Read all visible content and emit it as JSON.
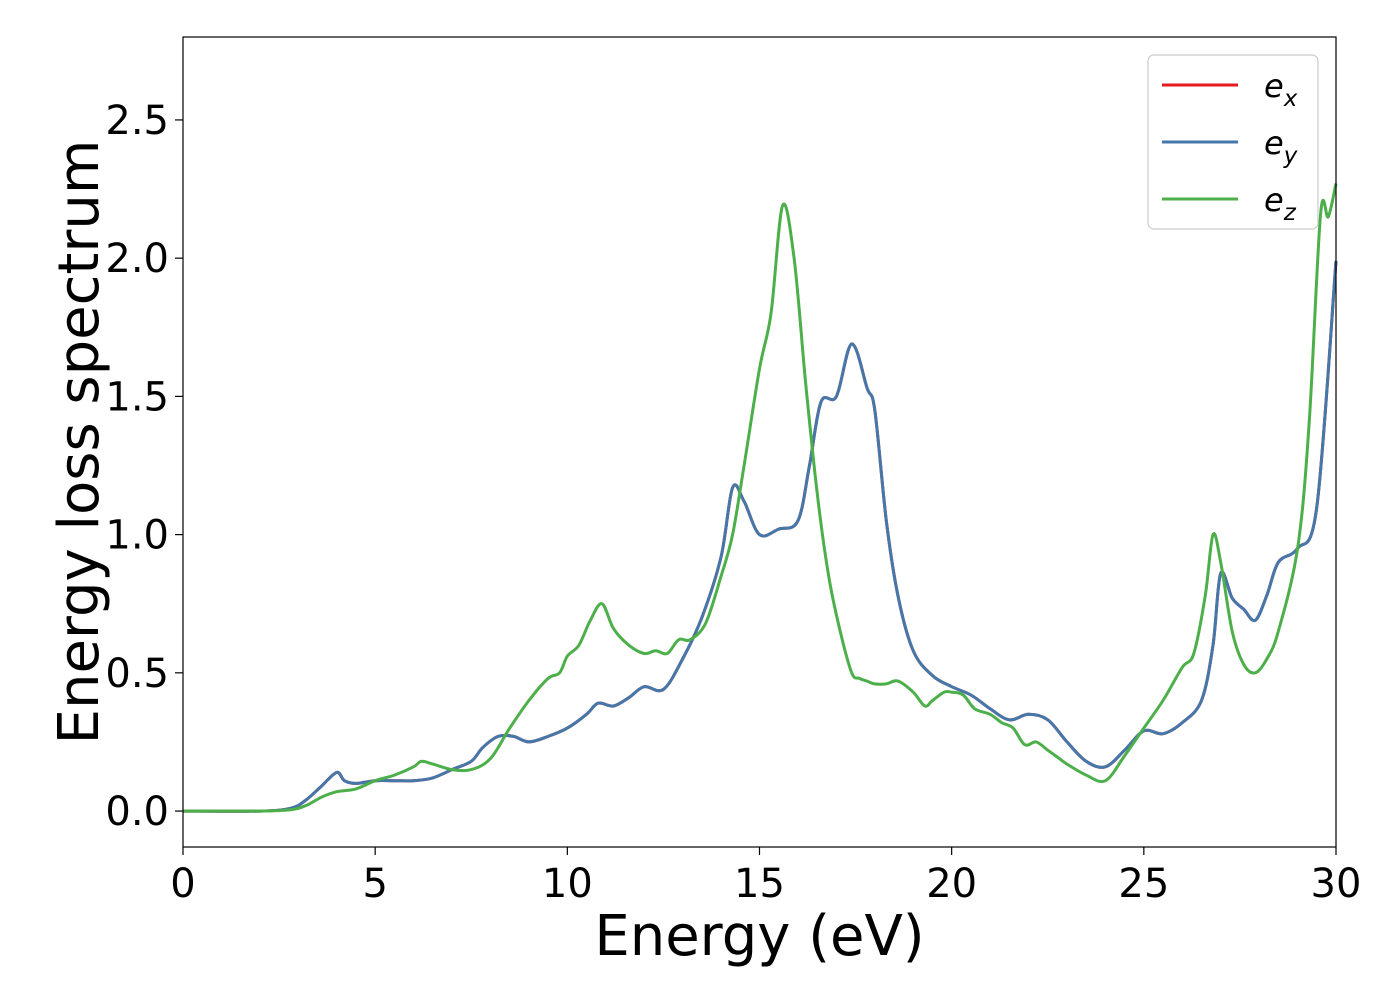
{
  "chart_data": {
    "type": "line",
    "xlabel": "Energy (eV)",
    "ylabel": "Energy loss spectrum",
    "xlim": [
      0,
      30
    ],
    "ylim": [
      -0.13,
      2.8
    ],
    "xticks": [
      "0",
      "5",
      "10",
      "15",
      "20",
      "25",
      "30"
    ],
    "yticks": [
      "0.0",
      "0.5",
      "1.0",
      "1.5",
      "2.0",
      "2.5"
    ],
    "grid": false,
    "legend_position": "top-right",
    "series": [
      {
        "name": "e_x",
        "legend_main": "e",
        "legend_sub": "x",
        "color": "#e41a1c",
        "x": [
          0,
          2,
          2.8,
          3.2,
          3.6,
          4.0,
          4.2,
          4.5,
          5,
          5.5,
          6,
          6.5,
          7,
          7.5,
          7.8,
          8.2,
          8.6,
          9,
          9.5,
          10,
          10.5,
          10.8,
          11.2,
          11.6,
          12,
          12.5,
          13,
          13.5,
          14,
          14.3,
          14.6,
          15,
          15.5,
          16,
          16.3,
          16.6,
          17,
          17.4,
          17.8,
          18,
          18.3,
          18.6,
          19,
          19.5,
          20,
          20.5,
          21,
          21.5,
          22,
          22.5,
          23,
          23.5,
          24,
          24.5,
          25,
          25.5,
          26,
          26.5,
          26.8,
          27,
          27.3,
          27.6,
          27.9,
          28.2,
          28.5,
          29,
          29.5,
          30
        ],
        "values": [
          0,
          0,
          0.01,
          0.04,
          0.09,
          0.14,
          0.11,
          0.1,
          0.11,
          0.11,
          0.11,
          0.12,
          0.15,
          0.18,
          0.23,
          0.27,
          0.27,
          0.25,
          0.27,
          0.3,
          0.35,
          0.39,
          0.38,
          0.41,
          0.45,
          0.44,
          0.55,
          0.7,
          0.92,
          1.17,
          1.12,
          1.0,
          1.02,
          1.05,
          1.25,
          1.48,
          1.5,
          1.69,
          1.53,
          1.45,
          1.05,
          0.78,
          0.58,
          0.49,
          0.45,
          0.42,
          0.37,
          0.33,
          0.35,
          0.33,
          0.25,
          0.18,
          0.16,
          0.22,
          0.29,
          0.28,
          0.32,
          0.4,
          0.6,
          0.86,
          0.77,
          0.73,
          0.69,
          0.78,
          0.9,
          0.95,
          1.1,
          1.99
        ]
      },
      {
        "name": "e_y",
        "legend_main": "e",
        "legend_sub": "y",
        "color": "#4477aa",
        "x": [
          0,
          2,
          2.8,
          3.2,
          3.6,
          4.0,
          4.2,
          4.5,
          5,
          5.5,
          6,
          6.5,
          7,
          7.5,
          7.8,
          8.2,
          8.6,
          9,
          9.5,
          10,
          10.5,
          10.8,
          11.2,
          11.6,
          12,
          12.5,
          13,
          13.5,
          14,
          14.3,
          14.6,
          15,
          15.5,
          16,
          16.3,
          16.6,
          17,
          17.4,
          17.8,
          18,
          18.3,
          18.6,
          19,
          19.5,
          20,
          20.5,
          21,
          21.5,
          22,
          22.5,
          23,
          23.5,
          24,
          24.5,
          25,
          25.5,
          26,
          26.5,
          26.8,
          27,
          27.3,
          27.6,
          27.9,
          28.2,
          28.5,
          29,
          29.5,
          30
        ],
        "values": [
          0,
          0,
          0.01,
          0.04,
          0.09,
          0.14,
          0.11,
          0.1,
          0.11,
          0.11,
          0.11,
          0.12,
          0.15,
          0.18,
          0.23,
          0.27,
          0.27,
          0.25,
          0.27,
          0.3,
          0.35,
          0.39,
          0.38,
          0.41,
          0.45,
          0.44,
          0.55,
          0.7,
          0.92,
          1.17,
          1.12,
          1.0,
          1.02,
          1.05,
          1.25,
          1.48,
          1.5,
          1.69,
          1.53,
          1.45,
          1.05,
          0.78,
          0.58,
          0.49,
          0.45,
          0.42,
          0.37,
          0.33,
          0.35,
          0.33,
          0.25,
          0.18,
          0.16,
          0.22,
          0.29,
          0.28,
          0.32,
          0.4,
          0.6,
          0.86,
          0.77,
          0.73,
          0.69,
          0.78,
          0.9,
          0.95,
          1.1,
          1.99
        ]
      },
      {
        "name": "e_z",
        "legend_main": "e",
        "legend_sub": "z",
        "color": "#4daf4a",
        "x": [
          0,
          2,
          2.8,
          3.2,
          3.6,
          4.0,
          4.5,
          5,
          5.5,
          6,
          6.2,
          6.5,
          7,
          7.5,
          8,
          8.5,
          9,
          9.5,
          9.8,
          10,
          10.3,
          10.6,
          10.9,
          11.2,
          11.6,
          12,
          12.3,
          12.6,
          12.9,
          13.2,
          13.6,
          14,
          14.3,
          14.6,
          15,
          15.3,
          15.6,
          15.9,
          16.2,
          16.5,
          16.8,
          17.1,
          17.4,
          17.6,
          17.8,
          18,
          18.3,
          18.6,
          19,
          19.3,
          19.5,
          19.8,
          20,
          20.3,
          20.6,
          21,
          21.3,
          21.6,
          21.9,
          22.2,
          22.5,
          22.8,
          23,
          23.5,
          24,
          24.5,
          25,
          25.5,
          26,
          26.3,
          26.6,
          26.8,
          27.0,
          27.3,
          27.6,
          27.9,
          28.2,
          28.5,
          29,
          29.3,
          29.6,
          29.8,
          30
        ],
        "values": [
          0,
          0,
          0.005,
          0.02,
          0.05,
          0.07,
          0.08,
          0.11,
          0.13,
          0.16,
          0.18,
          0.17,
          0.15,
          0.15,
          0.19,
          0.3,
          0.4,
          0.48,
          0.5,
          0.56,
          0.6,
          0.69,
          0.75,
          0.66,
          0.6,
          0.57,
          0.58,
          0.57,
          0.62,
          0.62,
          0.68,
          0.85,
          1.0,
          1.25,
          1.6,
          1.8,
          2.19,
          2.0,
          1.55,
          1.15,
          0.85,
          0.65,
          0.5,
          0.48,
          0.47,
          0.46,
          0.46,
          0.47,
          0.43,
          0.38,
          0.4,
          0.43,
          0.43,
          0.42,
          0.37,
          0.35,
          0.32,
          0.3,
          0.24,
          0.25,
          0.22,
          0.19,
          0.17,
          0.13,
          0.11,
          0.2,
          0.3,
          0.4,
          0.52,
          0.57,
          0.78,
          1.0,
          0.9,
          0.65,
          0.53,
          0.5,
          0.55,
          0.65,
          0.95,
          1.4,
          2.16,
          2.15,
          2.27
        ]
      }
    ]
  }
}
